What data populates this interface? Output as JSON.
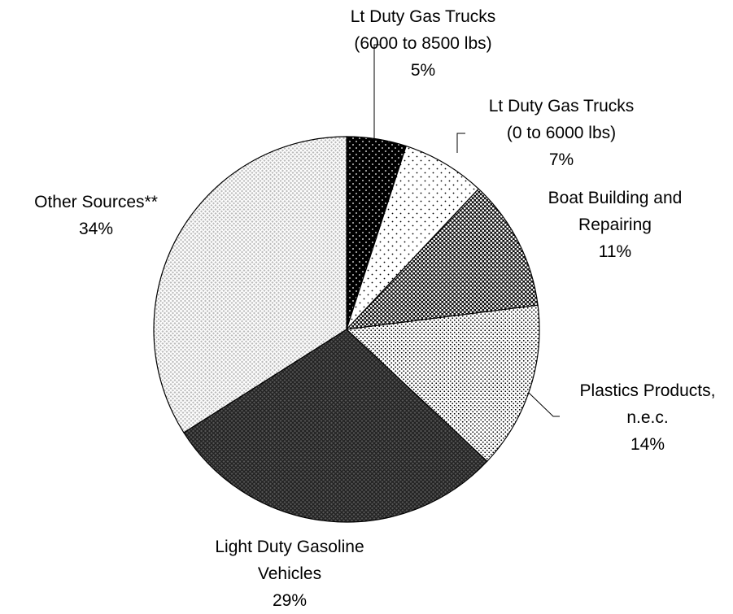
{
  "chart_data": {
    "type": "pie",
    "categories": [
      "Lt Duty Gas Trucks (6000 to 8500 lbs)",
      "Lt Duty Gas Trucks (0 to 6000 lbs)",
      "Boat Building and Repairing",
      "Plastics Products, n.e.c.",
      "Light Duty Gasoline Vehicles",
      "Other Sources**"
    ],
    "values": [
      5,
      7,
      11,
      14,
      29,
      34
    ],
    "value_labels": [
      "5%",
      "7%",
      "11%",
      "14%",
      "29%",
      "34%"
    ],
    "colors": [
      "#000000",
      "#ffffff",
      "#111111",
      "#ffffff",
      "#555555",
      "#bbbbbb"
    ]
  }
}
